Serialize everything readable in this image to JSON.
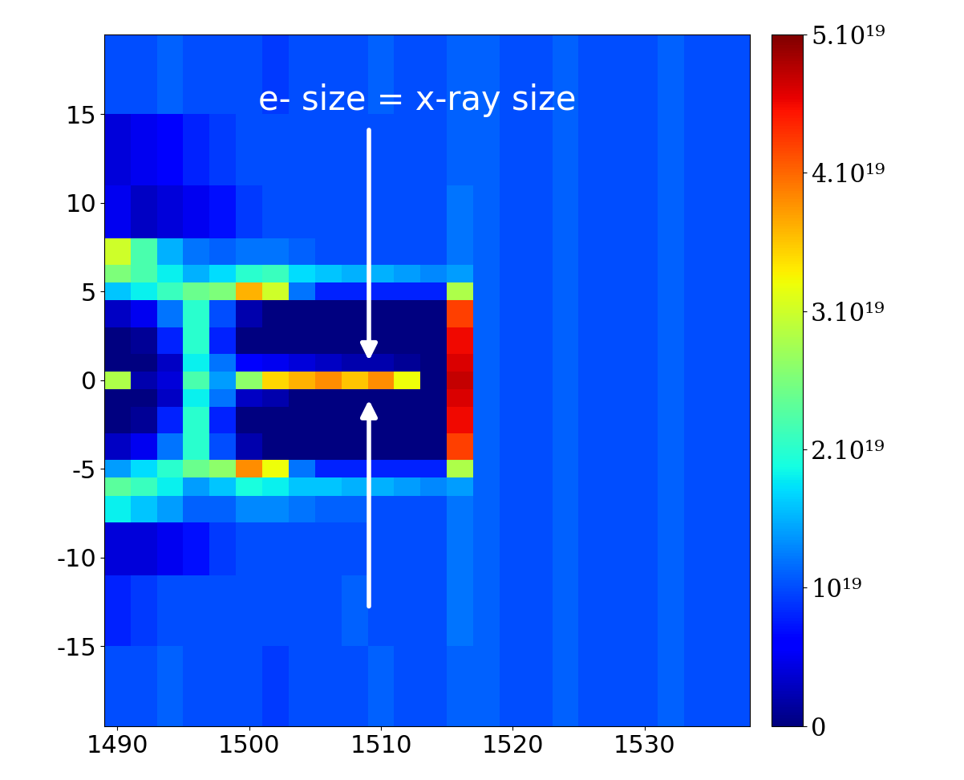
{
  "chart_data": {
    "type": "heatmap",
    "annotation": "e- size = x-ray size",
    "x_edges": [
      1489,
      1491,
      1493,
      1495,
      1497,
      1499,
      1501,
      1503,
      1505,
      1507,
      1509,
      1511,
      1513,
      1515,
      1517,
      1519,
      1521,
      1523,
      1525,
      1527,
      1529,
      1531,
      1533,
      1535,
      1537,
      1539
    ],
    "y_edges": [
      -19.5,
      -15,
      -11,
      -8,
      -6.5,
      -5.5,
      -4.5,
      -3,
      -1.5,
      -0.5,
      0.5,
      1.5,
      3,
      4.5,
      5.5,
      6.5,
      8,
      11,
      15,
      19.5
    ],
    "cells": [
      [
        1e+19,
        1e+19,
        1.1e+19,
        1e+19,
        1e+19,
        1e+19,
        9e+18,
        1e+19,
        1e+19,
        1e+19,
        1.1e+19,
        1e+19,
        1e+19,
        1.1e+19,
        1.1e+19,
        1e+19,
        1e+19,
        1.1e+19,
        1e+19,
        1e+19,
        1e+19,
        1.1e+19,
        1e+19,
        1e+19,
        1e+19
      ],
      [
        8e+18,
        9e+18,
        1e+19,
        1e+19,
        1e+19,
        1e+19,
        1e+19,
        1e+19,
        1e+19,
        1.1e+19,
        1e+19,
        1e+19,
        1e+19,
        1.2e+19,
        1.1e+19,
        1e+19,
        1e+19,
        1.1e+19,
        1e+19,
        1e+19,
        1e+19,
        1.1e+19,
        1e+19,
        1e+19,
        1e+19
      ],
      [
        4e+18,
        4e+18,
        5e+18,
        7e+18,
        9e+18,
        1e+19,
        1e+19,
        1e+19,
        1e+19,
        1e+19,
        1e+19,
        1e+19,
        1e+19,
        1.2e+19,
        1.1e+19,
        1e+19,
        1e+19,
        1.1e+19,
        1e+19,
        1e+19,
        1e+19,
        1.1e+19,
        1e+19,
        1e+19,
        1e+19
      ],
      [
        1.8e+19,
        1.6e+19,
        1.4e+19,
        1.1e+19,
        1.1e+19,
        1.3e+19,
        1.3e+19,
        1.2e+19,
        1.1e+19,
        1.1e+19,
        1e+19,
        1e+19,
        1e+19,
        1.2e+19,
        1.1e+19,
        1e+19,
        1e+19,
        1.1e+19,
        1e+19,
        1e+19,
        1e+19,
        1.1e+19,
        1e+19,
        1e+19,
        1e+19
      ],
      [
        2.3e+19,
        2.1e+19,
        1.8e+19,
        1.4e+19,
        1.6e+19,
        1.9e+19,
        1.8e+19,
        1.6e+19,
        1.6e+19,
        1.5e+19,
        1.5e+19,
        1.4e+19,
        1.3e+19,
        1.4e+19,
        1.1e+19,
        1e+19,
        1e+19,
        1.1e+19,
        1e+19,
        1e+19,
        1e+19,
        1.1e+19,
        1e+19,
        1e+19,
        1e+19
      ],
      [
        1.4e+19,
        1.7e+19,
        2e+19,
        2.4e+19,
        2.6e+19,
        3.8e+19,
        3.2e+19,
        1.2e+19,
        8e+18,
        8e+18,
        8e+18,
        8e+18,
        8e+18,
        2.8e+19,
        1.1e+19,
        1e+19,
        1e+19,
        1.1e+19,
        1e+19,
        1e+19,
        1e+19,
        1.1e+19,
        1e+19,
        1e+19,
        1e+19
      ],
      [
        3e+18,
        5e+18,
        1.2e+19,
        2e+19,
        1e+19,
        2e+18,
        0,
        0,
        0,
        0,
        0,
        0,
        0,
        4.2e+19,
        1.1e+19,
        1e+19,
        1e+19,
        1.1e+19,
        1e+19,
        1e+19,
        1e+19,
        1.1e+19,
        1e+19,
        1e+19,
        1e+19
      ],
      [
        0,
        1e+18,
        8e+18,
        2e+19,
        8e+18,
        0,
        0,
        0,
        0,
        0,
        0,
        0,
        0,
        4.5e+19,
        1.1e+19,
        1e+19,
        1e+19,
        1.1e+19,
        1e+19,
        1e+19,
        1e+19,
        1.1e+19,
        1e+19,
        1e+19,
        1e+19
      ],
      [
        0,
        0,
        3e+18,
        1.8e+19,
        1.2e+19,
        3e+18,
        2e+18,
        0,
        0,
        0,
        0,
        0,
        0,
        4.6e+19,
        1.1e+19,
        1e+19,
        1e+19,
        1.1e+19,
        1e+19,
        1e+19,
        1e+19,
        1.1e+19,
        1e+19,
        1e+19,
        1e+19
      ],
      [
        2.8e+19,
        2e+18,
        4e+18,
        2.2e+19,
        1.4e+19,
        2.6e+19,
        3.4e+19,
        3.6e+19,
        3.8e+19,
        3.5e+19,
        3.8e+19,
        3.2e+19,
        0,
        4.7e+19,
        1.1e+19,
        1e+19,
        1e+19,
        1.1e+19,
        1e+19,
        1e+19,
        1e+19,
        1.1e+19,
        1e+19,
        1e+19,
        1e+19
      ],
      [
        0,
        0,
        3e+18,
        1.8e+19,
        1.2e+19,
        6e+18,
        5e+18,
        4e+18,
        3e+18,
        2e+18,
        2e+18,
        1e+18,
        0,
        4.6e+19,
        1.1e+19,
        1e+19,
        1e+19,
        1.1e+19,
        1e+19,
        1e+19,
        1e+19,
        1.1e+19,
        1e+19,
        1e+19,
        1e+19
      ],
      [
        0,
        1e+18,
        8e+18,
        2e+19,
        8e+18,
        0,
        0,
        0,
        0,
        0,
        0,
        0,
        0,
        4.5e+19,
        1.1e+19,
        1e+19,
        1e+19,
        1.1e+19,
        1e+19,
        1e+19,
        1e+19,
        1.1e+19,
        1e+19,
        1e+19,
        1e+19
      ],
      [
        3e+18,
        5e+18,
        1.2e+19,
        2e+19,
        1e+19,
        2e+18,
        0,
        0,
        0,
        0,
        0,
        0,
        0,
        4.2e+19,
        1.1e+19,
        1e+19,
        1e+19,
        1.1e+19,
        1e+19,
        1e+19,
        1e+19,
        1.1e+19,
        1e+19,
        1e+19,
        1e+19
      ],
      [
        1.6e+19,
        1.8e+19,
        2.1e+19,
        2.4e+19,
        2.5e+19,
        3.6e+19,
        3e+19,
        1.2e+19,
        8e+18,
        8e+18,
        8e+18,
        8e+18,
        8e+18,
        2.8e+19,
        1.1e+19,
        1e+19,
        1e+19,
        1.1e+19,
        1e+19,
        1e+19,
        1e+19,
        1.1e+19,
        1e+19,
        1e+19,
        1e+19
      ],
      [
        2.5e+19,
        2.2e+19,
        1.8e+19,
        1.5e+19,
        1.7e+19,
        2e+19,
        2.1e+19,
        1.7e+19,
        1.6e+19,
        1.5e+19,
        1.5e+19,
        1.4e+19,
        1.3e+19,
        1.4e+19,
        1.1e+19,
        1e+19,
        1e+19,
        1.1e+19,
        1e+19,
        1e+19,
        1e+19,
        1.1e+19,
        1e+19,
        1e+19,
        1e+19
      ],
      [
        3e+19,
        2.2e+19,
        1.5e+19,
        1.2e+19,
        1.1e+19,
        1.2e+19,
        1.2e+19,
        1.1e+19,
        1e+19,
        1e+19,
        1e+19,
        1e+19,
        1e+19,
        1.2e+19,
        1.1e+19,
        1e+19,
        1e+19,
        1.1e+19,
        1e+19,
        1e+19,
        1e+19,
        1.1e+19,
        1e+19,
        1e+19,
        1e+19
      ],
      [
        5e+18,
        3e+18,
        4e+18,
        5e+18,
        7e+18,
        9e+18,
        1e+19,
        1e+19,
        1e+19,
        1e+19,
        1e+19,
        1e+19,
        1e+19,
        1.2e+19,
        1.1e+19,
        1e+19,
        1e+19,
        1.1e+19,
        1e+19,
        1e+19,
        1e+19,
        1.1e+19,
        1e+19,
        1e+19,
        1e+19
      ],
      [
        4e+18,
        5e+18,
        6e+18,
        8e+18,
        9e+18,
        1e+19,
        1e+19,
        1e+19,
        1e+19,
        1e+19,
        1e+19,
        1e+19,
        1e+19,
        1.1e+19,
        1.1e+19,
        1e+19,
        1e+19,
        1.1e+19,
        1e+19,
        1e+19,
        1e+19,
        1.1e+19,
        1e+19,
        1e+19,
        1e+19
      ],
      [
        1e+19,
        1e+19,
        1.1e+19,
        1e+19,
        1e+19,
        1e+19,
        9e+18,
        1e+19,
        1e+19,
        1e+19,
        1.1e+19,
        1e+19,
        1e+19,
        1.1e+19,
        1.1e+19,
        1e+19,
        1e+19,
        1.1e+19,
        1e+19,
        1e+19,
        1e+19,
        1.1e+19,
        1e+19,
        1e+19,
        1e+19
      ]
    ],
    "xlim": [
      1489,
      1538
    ],
    "ylim": [
      -19.5,
      19.5
    ],
    "xticks": [
      1490,
      1500,
      1510,
      1520,
      1530
    ],
    "yticks": [
      -15,
      -10,
      -5,
      0,
      5,
      10,
      15
    ],
    "colorbar_range": [
      0,
      5e+19
    ],
    "colorbar_ticks": [
      0,
      {
        "value": 1e+19,
        "label": "10¹⁹"
      },
      {
        "value": 2e+19,
        "label": "2.10¹⁹"
      },
      {
        "value": 3e+19,
        "label": "3.10¹⁹"
      },
      {
        "value": 4e+19,
        "label": "4.10¹⁹"
      },
      {
        "value": 5e+19,
        "label": "5.10¹⁹"
      }
    ]
  }
}
